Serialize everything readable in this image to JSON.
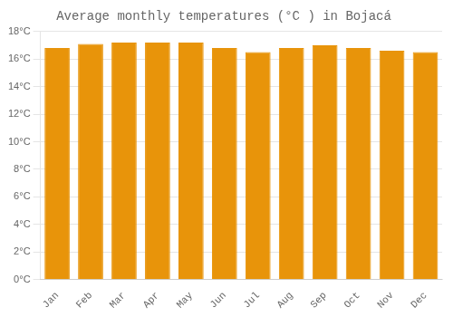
{
  "chart_data": {
    "type": "bar",
    "title": "Average monthly temperatures (°C ) in Bojacá",
    "categories": [
      "Jan",
      "Feb",
      "Mar",
      "Apr",
      "May",
      "Jun",
      "Jul",
      "Aug",
      "Sep",
      "Oct",
      "Nov",
      "Dec"
    ],
    "values": [
      16.8,
      17.1,
      17.2,
      17.2,
      17.2,
      16.8,
      16.5,
      16.8,
      17.0,
      16.8,
      16.6,
      16.5
    ],
    "color": "#E8940A",
    "ylim": [
      0,
      18
    ],
    "yticks": [
      {
        "value": 0,
        "label": "0°C"
      },
      {
        "value": 2,
        "label": "2°C"
      },
      {
        "value": 4,
        "label": "4°C"
      },
      {
        "value": 6,
        "label": "6°C"
      },
      {
        "value": 8,
        "label": "8°C"
      },
      {
        "value": 10,
        "label": "10°C"
      },
      {
        "value": 12,
        "label": "12°C"
      },
      {
        "value": 14,
        "label": "14°C"
      },
      {
        "value": 16,
        "label": "16°C"
      },
      {
        "value": 18,
        "label": "18°C"
      }
    ],
    "grid": true
  }
}
